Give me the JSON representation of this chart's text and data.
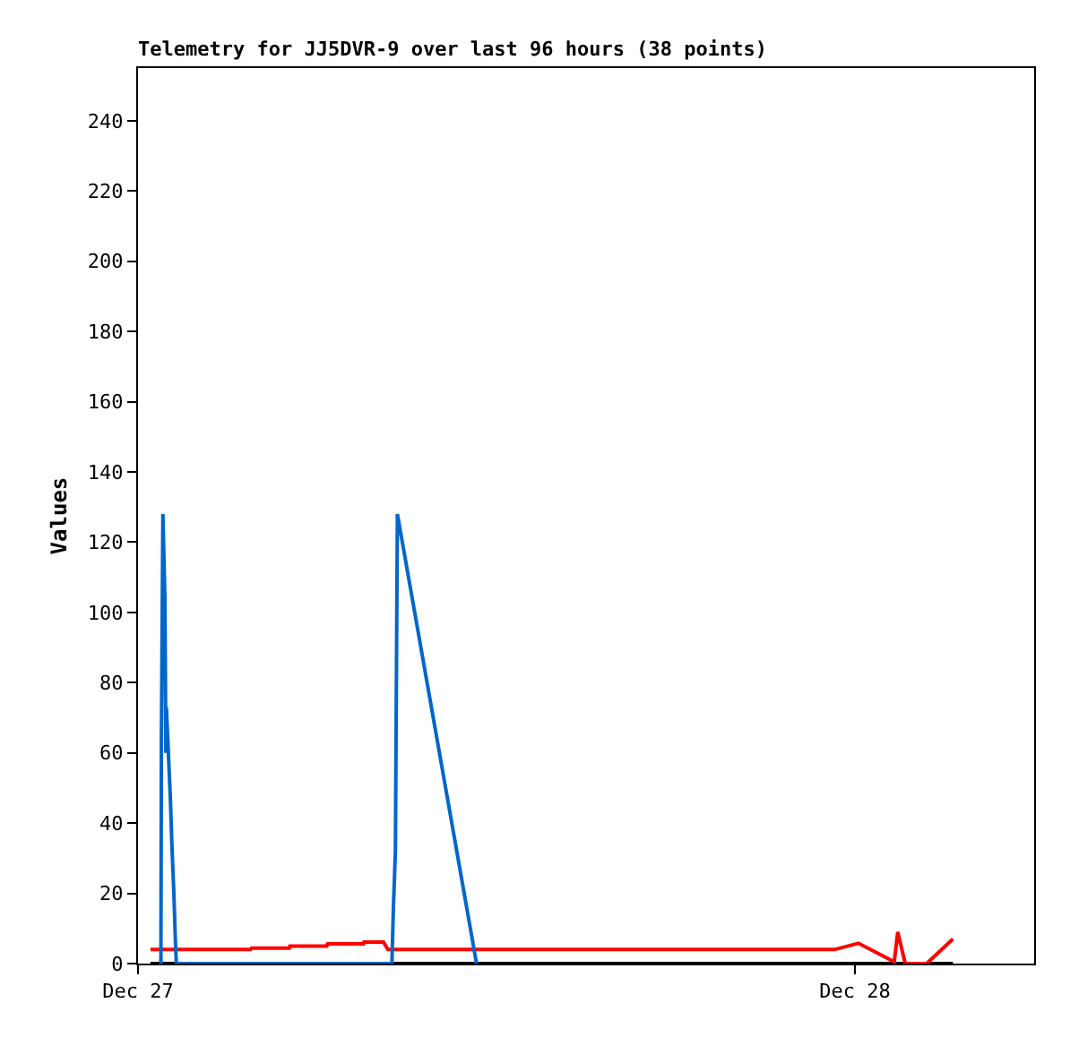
{
  "chart_data": {
    "type": "line",
    "title": "Telemetry for JJ5DVR-9 over last 96 hours (38 points)",
    "ylabel": "Values",
    "xlim": [
      "--12-27T00:00",
      "--12-28T06:00"
    ],
    "xticks": [
      {
        "value": "--12-27",
        "label": "Dec 27"
      },
      {
        "value": "--12-28",
        "label": "Dec 28"
      }
    ],
    "ylim": [
      0,
      255
    ],
    "yticks": [
      0,
      20,
      40,
      60,
      80,
      100,
      120,
      140,
      160,
      180,
      200,
      220,
      240
    ],
    "grid": false,
    "marker": "none",
    "line_style": "solid",
    "series": [
      {
        "color": "#000000",
        "x": [
          "--12-27T00:25",
          "--12-28T03:17"
        ],
        "values": [
          0,
          0
        ]
      },
      {
        "color": "#ff0000",
        "x": [
          "--12-27T00:25",
          "--12-27T03:46",
          "--12-27T03:48",
          "--12-27T05:04",
          "--12-27T05:05",
          "--12-27T06:19",
          "--12-27T06:21",
          "--12-27T07:33",
          "--12-27T07:34",
          "--12-27T08:13",
          "--12-27T08:22",
          "--12-27T23:19",
          "--12-28T00:07",
          "--12-28T01:19",
          "--12-28T01:26",
          "--12-28T01:41",
          "--12-28T02:24",
          "--12-28T03:17"
        ],
        "values": [
          4,
          4,
          4.4,
          4.4,
          5,
          5,
          5.6,
          5.6,
          6.1,
          6.1,
          4,
          4,
          5.8,
          0.5,
          9,
          0,
          0,
          7
        ]
      },
      {
        "color": "#0066cc",
        "x": [
          "--12-27T00:46",
          "--12-27T00:47",
          "--12-27T00:50",
          "--12-27T00:54",
          "--12-27T00:56",
          "--12-27T00:57",
          "--12-27T01:01",
          "--12-27T01:05",
          "--12-27T01:08",
          "--12-27T01:12",
          "--12-27T01:15",
          "--12-27T01:17",
          "--12-27T08:30",
          "--12-27T08:33",
          "--12-27T08:37",
          "--12-27T08:41",
          "--12-27T11:20"
        ],
        "values": [
          0,
          64,
          128,
          104,
          60,
          73,
          60,
          47,
          34,
          20,
          7,
          0,
          0,
          16,
          32,
          128,
          0
        ]
      }
    ]
  }
}
